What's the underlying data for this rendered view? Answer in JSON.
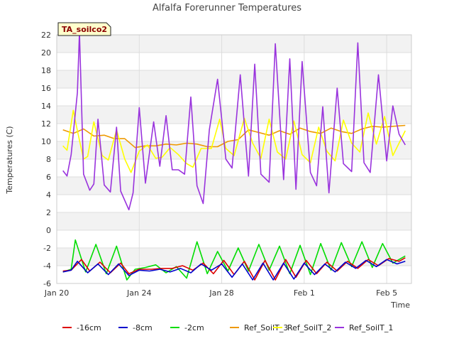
{
  "chart_data": {
    "type": "line",
    "title": "Alfalfa Forerunner Temperatures",
    "xlabel": "Time",
    "ylabel": "Temperatures (C)",
    "badge": "TA_soilco2",
    "ylim": [
      -6,
      22
    ],
    "xlim": [
      0,
      17.2
    ],
    "x_unit": "days since Jan 20",
    "yticks": [
      -6,
      -4,
      -2,
      0,
      2,
      4,
      6,
      8,
      10,
      12,
      14,
      16,
      18,
      20,
      22
    ],
    "xticks": [
      {
        "value": 0,
        "label": "Jan 20"
      },
      {
        "value": 4,
        "label": "Jan 24"
      },
      {
        "value": 8,
        "label": "Jan 28"
      },
      {
        "value": 12,
        "label": "Feb 1"
      },
      {
        "value": 16,
        "label": "Feb 5"
      }
    ],
    "grid": true,
    "legend_position": "bottom",
    "series": [
      {
        "name": "-16cm",
        "color": "#dd0000",
        "x": [
          0.3,
          0.7,
          1.2,
          1.6,
          2.1,
          2.6,
          3.1,
          3.5,
          4.0,
          4.6,
          5.1,
          5.6,
          6.1,
          6.6,
          7.1,
          7.6,
          8.1,
          8.6,
          9.1,
          9.6,
          10.1,
          10.6,
          11.1,
          11.6,
          12.1,
          12.6,
          13.1,
          13.6,
          14.1,
          14.6,
          15.1,
          15.6,
          16.1,
          16.6,
          16.9
        ],
        "y": [
          -4.6,
          -4.5,
          -3.3,
          -4.6,
          -3.6,
          -4.8,
          -3.7,
          -4.9,
          -4.4,
          -4.4,
          -4.3,
          -4.3,
          -4.0,
          -4.5,
          -3.7,
          -4.9,
          -3.4,
          -5.0,
          -3.5,
          -5.6,
          -3.4,
          -5.6,
          -3.3,
          -5.3,
          -3.4,
          -4.9,
          -3.6,
          -4.6,
          -3.5,
          -4.3,
          -3.3,
          -4.0,
          -3.2,
          -3.5,
          -3.1
        ]
      },
      {
        "name": "-8cm",
        "color": "#0000cc",
        "x": [
          0.3,
          0.7,
          1.0,
          1.5,
          2.0,
          2.5,
          3.0,
          3.5,
          4.0,
          4.5,
          5.0,
          5.5,
          6.0,
          6.5,
          7.0,
          7.5,
          8.0,
          8.5,
          9.0,
          9.5,
          10.0,
          10.5,
          11.0,
          11.5,
          12.0,
          12.5,
          13.0,
          13.5,
          14.0,
          14.5,
          15.0,
          15.5,
          16.0,
          16.5,
          16.9
        ],
        "y": [
          -4.7,
          -4.5,
          -3.5,
          -4.8,
          -3.8,
          -5.0,
          -3.8,
          -5.1,
          -4.5,
          -4.6,
          -4.4,
          -4.7,
          -4.3,
          -4.8,
          -3.8,
          -4.5,
          -3.8,
          -5.3,
          -3.8,
          -5.6,
          -3.7,
          -5.6,
          -3.7,
          -5.5,
          -3.7,
          -5.0,
          -3.8,
          -4.7,
          -3.6,
          -4.3,
          -3.4,
          -4.1,
          -3.3,
          -3.8,
          -3.5
        ]
      },
      {
        "name": "-2cm",
        "color": "#00dd00",
        "x": [
          0.3,
          0.7,
          0.9,
          1.4,
          1.9,
          2.4,
          2.9,
          3.4,
          3.8,
          4.3,
          4.8,
          5.3,
          5.8,
          6.3,
          6.8,
          7.3,
          7.8,
          8.3,
          8.8,
          9.3,
          9.8,
          10.3,
          10.8,
          11.3,
          11.8,
          12.3,
          12.8,
          13.3,
          13.8,
          14.3,
          14.8,
          15.3,
          15.8,
          16.3,
          16.9
        ],
        "y": [
          -4.7,
          -4.4,
          -1.1,
          -4.7,
          -1.6,
          -4.9,
          -1.8,
          -5.6,
          -4.4,
          -4.2,
          -3.9,
          -4.8,
          -4.1,
          -5.4,
          -1.3,
          -4.9,
          -2.4,
          -4.6,
          -2.0,
          -4.6,
          -1.6,
          -4.5,
          -1.8,
          -4.9,
          -1.7,
          -5.0,
          -1.5,
          -4.5,
          -1.4,
          -4.1,
          -1.3,
          -4.2,
          -1.5,
          -3.7,
          -2.9
        ]
      },
      {
        "name": "Ref_SoilT_3",
        "color": "#ee9900",
        "x": [
          0.3,
          0.8,
          1.3,
          1.8,
          2.3,
          2.8,
          3.3,
          3.8,
          4.3,
          4.8,
          5.3,
          5.8,
          6.3,
          6.8,
          7.3,
          7.8,
          8.3,
          8.8,
          9.3,
          9.8,
          10.3,
          10.8,
          11.3,
          11.8,
          12.3,
          12.8,
          13.3,
          13.8,
          14.3,
          14.8,
          15.3,
          15.8,
          16.3,
          16.9
        ],
        "y": [
          11.3,
          10.9,
          11.4,
          10.6,
          10.7,
          10.3,
          10.3,
          9.3,
          9.5,
          9.5,
          9.7,
          9.6,
          9.8,
          9.7,
          9.4,
          9.4,
          10.0,
          10.2,
          11.3,
          11.0,
          10.7,
          11.2,
          10.8,
          11.5,
          11.1,
          10.9,
          11.5,
          11.1,
          10.9,
          11.4,
          11.7,
          11.6,
          11.7,
          11.8
        ]
      },
      {
        "name": "Ref_SoilT_2",
        "color": "#ffff00",
        "x": [
          0.3,
          0.5,
          0.8,
          1.0,
          1.3,
          1.5,
          1.8,
          2.2,
          2.5,
          2.9,
          3.3,
          3.6,
          4.0,
          4.4,
          4.8,
          5.1,
          5.5,
          5.9,
          6.3,
          6.6,
          7.0,
          7.5,
          7.9,
          8.2,
          8.6,
          9.1,
          9.5,
          9.9,
          10.3,
          10.7,
          11.1,
          11.5,
          11.9,
          12.3,
          12.7,
          13.1,
          13.5,
          13.9,
          14.3,
          14.7,
          15.1,
          15.5,
          15.9,
          16.3,
          16.9
        ],
        "y": [
          9.5,
          9.0,
          13.5,
          11.2,
          8.0,
          8.3,
          12.2,
          8.4,
          7.9,
          11.3,
          8.0,
          6.5,
          8.9,
          9.6,
          8.1,
          8.2,
          9.3,
          8.5,
          7.5,
          7.1,
          9.2,
          9.2,
          12.5,
          9.2,
          8.4,
          12.6,
          9.8,
          8.1,
          12.5,
          8.8,
          8.0,
          12.3,
          8.5,
          7.6,
          11.6,
          8.9,
          7.8,
          12.4,
          9.8,
          8.8,
          13.2,
          9.7,
          12.8,
          8.4,
          11.2
        ]
      },
      {
        "name": "Ref_SoilT_1",
        "color": "#9933dd",
        "x": [
          0.3,
          0.5,
          0.7,
          1.0,
          1.1,
          1.3,
          1.6,
          1.8,
          2.0,
          2.3,
          2.6,
          2.9,
          3.1,
          3.5,
          3.7,
          4.0,
          4.3,
          4.7,
          5.0,
          5.3,
          5.6,
          5.9,
          6.2,
          6.5,
          6.8,
          7.1,
          7.4,
          7.8,
          8.2,
          8.5,
          8.9,
          9.3,
          9.6,
          9.9,
          10.3,
          10.6,
          11.0,
          11.3,
          11.6,
          11.9,
          12.3,
          12.6,
          12.9,
          13.2,
          13.6,
          13.9,
          14.3,
          14.6,
          14.9,
          15.2,
          15.6,
          16.0,
          16.3,
          16.6,
          16.9
        ],
        "y": [
          6.7,
          6.1,
          8.5,
          15.5,
          22.3,
          6.3,
          4.5,
          5.2,
          12.5,
          5.1,
          4.3,
          11.6,
          4.4,
          2.3,
          4.2,
          13.8,
          5.3,
          12.2,
          7.2,
          12.9,
          6.8,
          6.8,
          6.3,
          15.0,
          5.0,
          3.0,
          11.3,
          17.0,
          8.0,
          7.0,
          17.5,
          6.1,
          18.7,
          6.3,
          5.4,
          21.0,
          5.7,
          19.3,
          4.6,
          19.0,
          6.5,
          5.0,
          13.9,
          4.2,
          16.0,
          7.5,
          6.6,
          21.1,
          7.6,
          6.5,
          17.5,
          7.8,
          14.0,
          10.8,
          9.6
        ]
      }
    ]
  }
}
